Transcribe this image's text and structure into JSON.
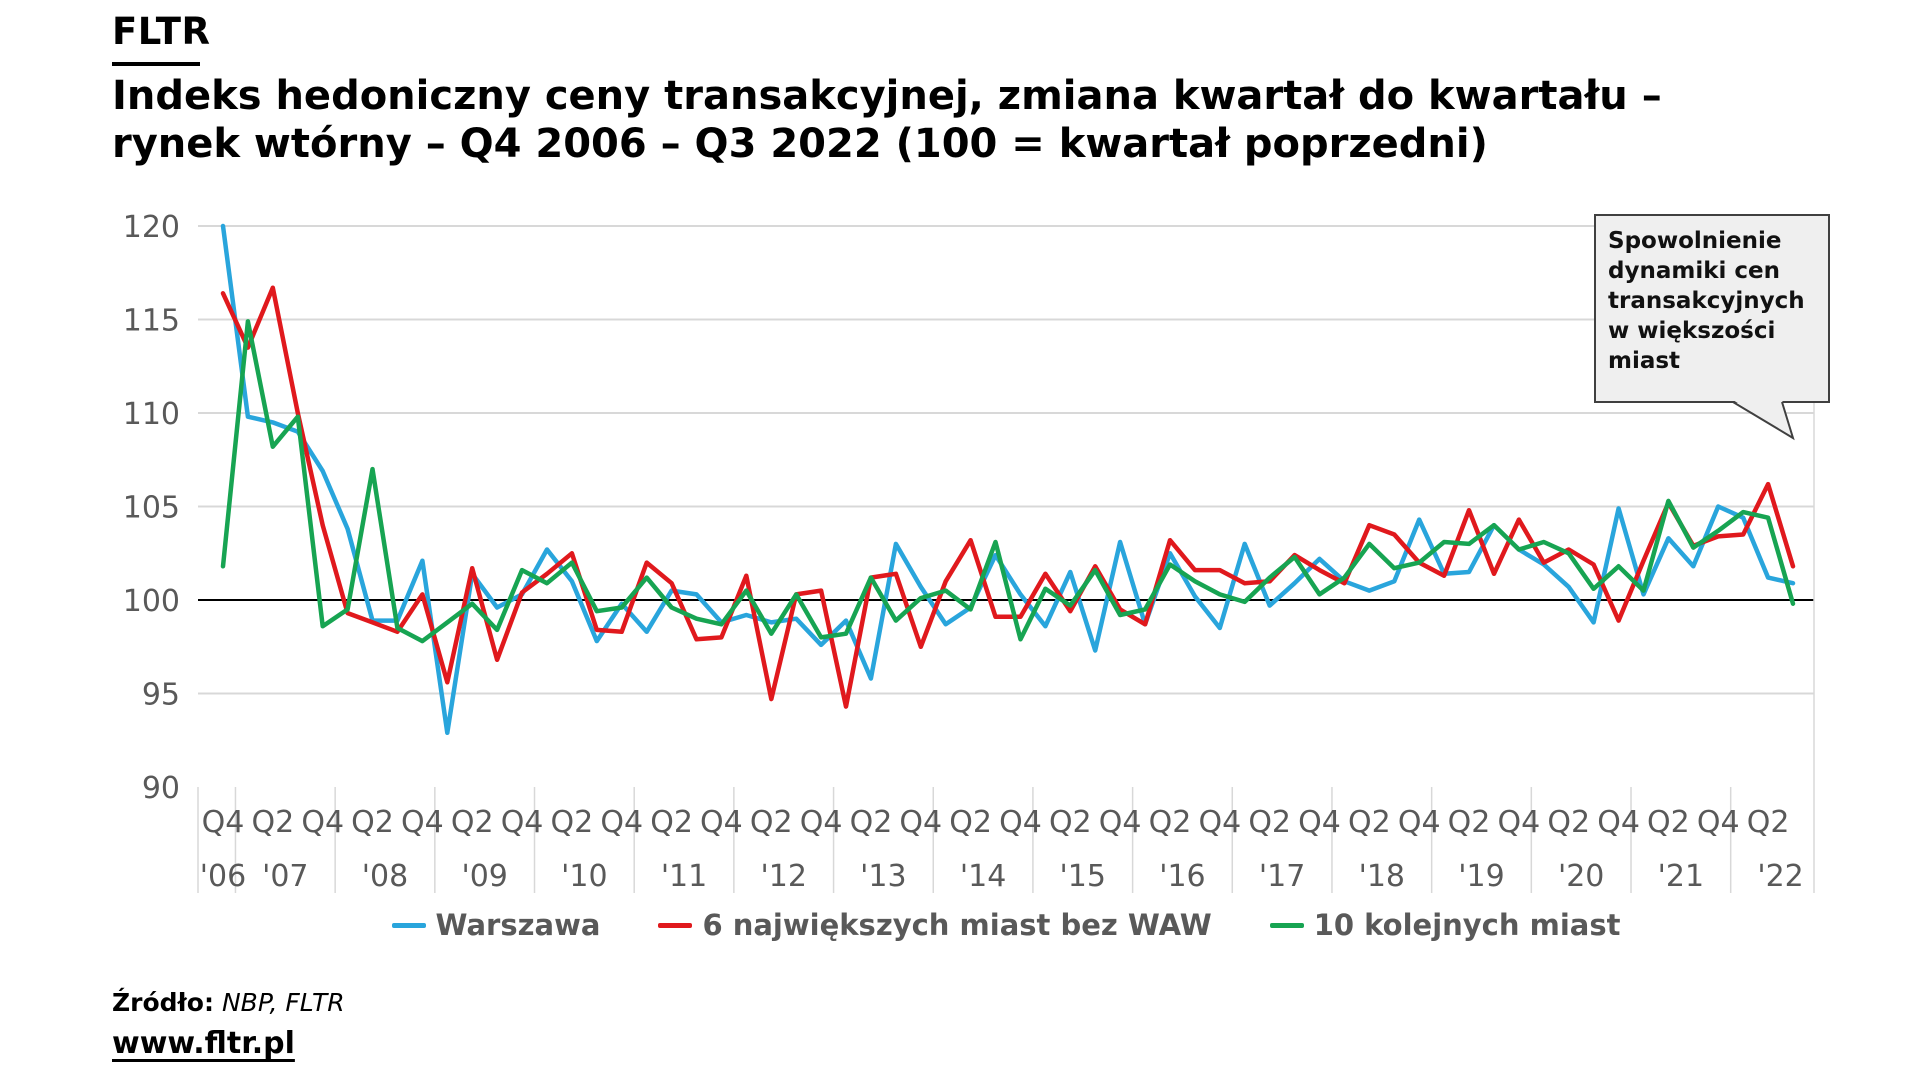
{
  "brand": "FLTR",
  "title": {
    "line1": "Indeks hedoniczny ceny transakcyjnej, zmiana kwartał do kwartału –",
    "line2": "rynek wtórny – Q4 2006 – Q3 2022 (100 = kwartał poprzedni)"
  },
  "annotation": {
    "text": "Spowolnienie\ndynamiki cen\ntransakcyjnych\nw większości\nmiast"
  },
  "legend": [
    {
      "label": "Warszawa",
      "color": "#29A5DC"
    },
    {
      "label": "6 największych miast bez WAW",
      "color": "#E0191D"
    },
    {
      "label": "10 kolejnych miast",
      "color": "#17A452"
    }
  ],
  "source": {
    "label": "Źródło:",
    "value": "NBP, FLTR"
  },
  "website": "www.fltr.pl",
  "colors": {
    "grid": "#d8d8d8",
    "baseline": "#000000",
    "tick_text": "#595959"
  },
  "chart_data": {
    "type": "line",
    "title": "Indeks hedoniczny ceny transakcyjnej, zmiana kwartał do kwartału – rynek wtórny – Q4 2006 – Q3 2022 (100 = kwartał poprzedni)",
    "x_start": "Q4 2006",
    "x_end": "Q3 2022",
    "x_step": "quarter",
    "n_points": 64,
    "ylim": [
      90,
      120
    ],
    "yticks": [
      90,
      95,
      100,
      105,
      110,
      115,
      120
    ],
    "baseline_value": 100,
    "grid": "horizontal",
    "legend_position": "bottom",
    "x_tick_labels_quarters": [
      "Q4",
      "Q2",
      "Q4",
      "Q2",
      "Q4",
      "Q2",
      "Q4",
      "Q2",
      "Q4",
      "Q2",
      "Q4",
      "Q2",
      "Q4",
      "Q2",
      "Q4",
      "Q2",
      "Q4",
      "Q2",
      "Q4",
      "Q2",
      "Q4",
      "Q2",
      "Q4",
      "Q2",
      "Q4",
      "Q2",
      "Q4",
      "Q2",
      "Q4",
      "Q2",
      "Q4",
      "Q2"
    ],
    "x_tick_labels_years": [
      "'06",
      "'07",
      "'08",
      "'09",
      "'10",
      "'11",
      "'12",
      "'13",
      "'14",
      "'15",
      "'16",
      "'17",
      "'18",
      "'19",
      "'20",
      "'21",
      "'22"
    ],
    "series": [
      {
        "name": "Warszawa",
        "color": "#29A5DC",
        "values": [
          120.0,
          109.8,
          109.5,
          109.0,
          106.9,
          103.8,
          98.9,
          98.9,
          102.1,
          92.9,
          101.4,
          99.6,
          100.3,
          102.7,
          101.0,
          97.8,
          99.8,
          98.3,
          100.5,
          100.3,
          98.8,
          99.2,
          98.8,
          99.0,
          97.6,
          98.9,
          95.8,
          103.0,
          100.7,
          98.7,
          99.6,
          102.4,
          100.3,
          98.6,
          101.5,
          97.3,
          103.1,
          98.7,
          102.5,
          100.2,
          98.5,
          103.0,
          99.7,
          100.9,
          102.2,
          101.0,
          100.5,
          101.0,
          104.3,
          101.4,
          101.5,
          104.0,
          102.7,
          101.9,
          100.7,
          98.8,
          104.9,
          100.3,
          103.3,
          101.8,
          105.0,
          104.4,
          101.2,
          100.9
        ]
      },
      {
        "name": "6 największych miast bez WAW",
        "color": "#E0191D",
        "values": [
          116.4,
          113.5,
          116.7,
          110.0,
          104.0,
          99.3,
          98.8,
          98.3,
          100.3,
          95.6,
          101.7,
          96.8,
          100.4,
          101.4,
          102.5,
          98.4,
          98.3,
          102.0,
          100.9,
          97.9,
          98.0,
          101.3,
          94.7,
          100.3,
          100.5,
          94.3,
          101.2,
          101.4,
          97.5,
          101.0,
          103.2,
          99.1,
          99.1,
          101.4,
          99.4,
          101.8,
          99.5,
          98.7,
          103.2,
          101.6,
          101.6,
          100.9,
          101.0,
          102.4,
          101.6,
          100.9,
          104.0,
          103.5,
          102.0,
          101.3,
          104.8,
          101.4,
          104.3,
          102.0,
          102.7,
          101.9,
          98.9,
          102.1,
          105.2,
          102.9,
          103.4,
          103.5,
          106.2,
          101.8
        ]
      },
      {
        "name": "10 kolejnych miast",
        "color": "#17A452",
        "values": [
          101.8,
          114.9,
          108.2,
          109.8,
          98.6,
          99.5,
          107.0,
          98.5,
          97.8,
          98.8,
          99.8,
          98.4,
          101.6,
          100.9,
          102.0,
          99.4,
          99.6,
          101.2,
          99.6,
          99.0,
          98.7,
          100.5,
          98.2,
          100.3,
          98.0,
          98.2,
          101.2,
          98.9,
          100.1,
          100.5,
          99.5,
          103.1,
          97.9,
          100.6,
          99.7,
          101.6,
          99.2,
          99.5,
          101.9,
          101.0,
          100.3,
          99.9,
          101.2,
          102.3,
          100.3,
          101.2,
          103.0,
          101.7,
          102.0,
          103.1,
          103.0,
          104.0,
          102.7,
          103.1,
          102.5,
          100.6,
          101.8,
          100.5,
          105.3,
          102.8,
          103.7,
          104.7,
          104.4,
          99.8
        ]
      }
    ]
  }
}
